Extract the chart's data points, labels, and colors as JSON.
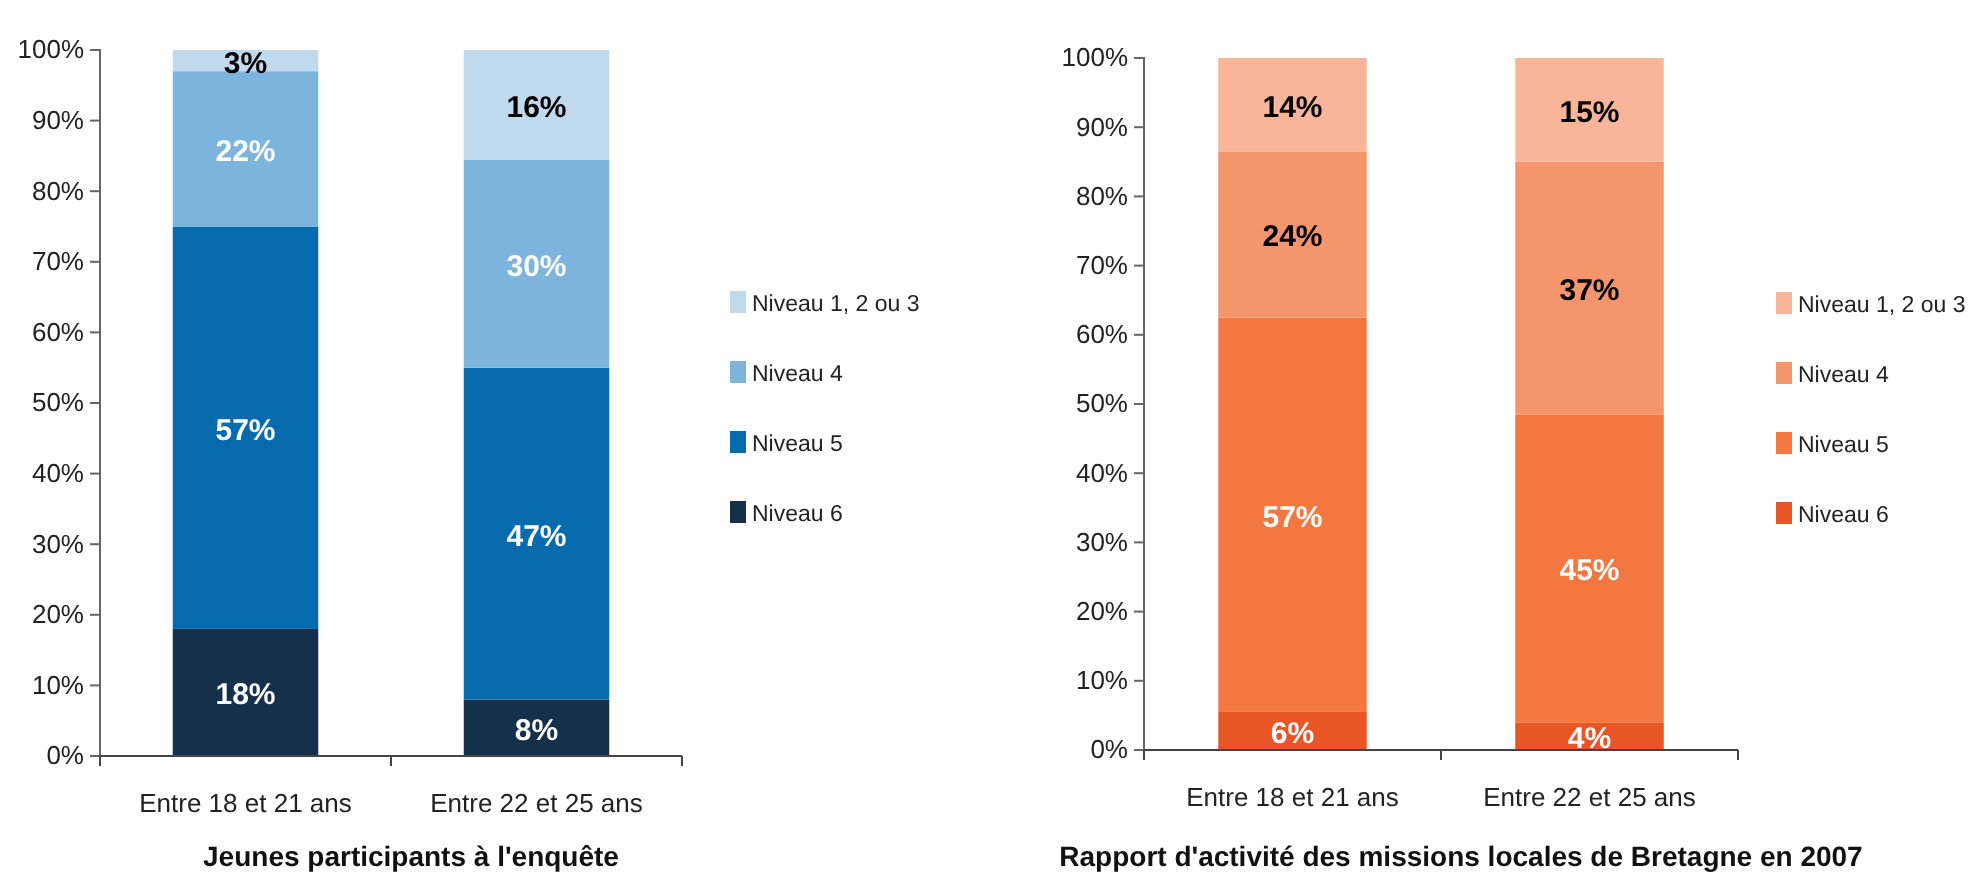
{
  "chart_data": [
    {
      "type": "bar",
      "stacked": true,
      "title": "Jeunes participants à l'enquête",
      "categories": [
        "Entre 18 et 21 ans",
        "Entre 22 et 25 ans"
      ],
      "ylim": [
        0,
        100
      ],
      "yticks": [
        {
          "value": 0,
          "label": "0%"
        },
        {
          "value": 10,
          "label": "10%"
        },
        {
          "value": 20,
          "label": "20%"
        },
        {
          "value": 30,
          "label": "30%"
        },
        {
          "value": 40,
          "label": "40%"
        },
        {
          "value": 50,
          "label": "50%"
        },
        {
          "value": 60,
          "label": "60%"
        },
        {
          "value": 70,
          "label": "70%"
        },
        {
          "value": 80,
          "label": "80%"
        },
        {
          "value": 90,
          "label": "90%"
        },
        {
          "value": 100,
          "label": "100%"
        }
      ],
      "legend": "right",
      "grid": false,
      "series": [
        {
          "name": "Niveau 6",
          "color": "#15304a",
          "values": [
            18,
            8
          ],
          "value_labels": [
            "18%",
            "8%"
          ]
        },
        {
          "name": "Niveau 5",
          "color": "#066bad",
          "values": [
            57,
            47
          ],
          "value_labels": [
            "57%",
            "47%"
          ]
        },
        {
          "name": "Niveau 4",
          "color": "#7db4de",
          "values": [
            22,
            29.5
          ],
          "value_labels": [
            "22%",
            "30%"
          ]
        },
        {
          "name": "Niveau 1, 2 ou 3",
          "color": "#c0d9ec",
          "values": [
            3,
            15.5
          ],
          "value_labels": [
            "3%",
            "16%"
          ]
        }
      ]
    },
    {
      "type": "bar",
      "stacked": true,
      "title": "Rapport d'activité des missions locales de Bretagne en 2007",
      "categories": [
        "Entre 18 et 21 ans",
        "Entre 22 et 25 ans"
      ],
      "ylim": [
        0,
        100
      ],
      "yticks": [
        {
          "value": 0,
          "label": "0%"
        },
        {
          "value": 10,
          "label": "10%"
        },
        {
          "value": 20,
          "label": "20%"
        },
        {
          "value": 30,
          "label": "30%"
        },
        {
          "value": 40,
          "label": "40%"
        },
        {
          "value": 50,
          "label": "50%"
        },
        {
          "value": 60,
          "label": "60%"
        },
        {
          "value": 70,
          "label": "70%"
        },
        {
          "value": 80,
          "label": "80%"
        },
        {
          "value": 90,
          "label": "90%"
        },
        {
          "value": 100,
          "label": "100%"
        }
      ],
      "legend": "right",
      "grid": false,
      "series": [
        {
          "name": "Niveau 6",
          "color": "#e85626",
          "values": [
            5.5,
            4
          ],
          "value_labels": [
            "6%",
            "4%"
          ]
        },
        {
          "name": "Niveau 5",
          "color": "#f27740",
          "values": [
            57,
            44.5
          ],
          "value_labels": [
            "57%",
            "45%"
          ]
        },
        {
          "name": "Niveau 4",
          "color": "#f4956c",
          "values": [
            24,
            36.5
          ],
          "value_labels": [
            "24%",
            "37%"
          ]
        },
        {
          "name": "Niveau 1, 2 ou 3",
          "color": "#f8b59a",
          "values": [
            13.5,
            15
          ],
          "value_labels": [
            "14%",
            "15%"
          ]
        }
      ]
    }
  ]
}
